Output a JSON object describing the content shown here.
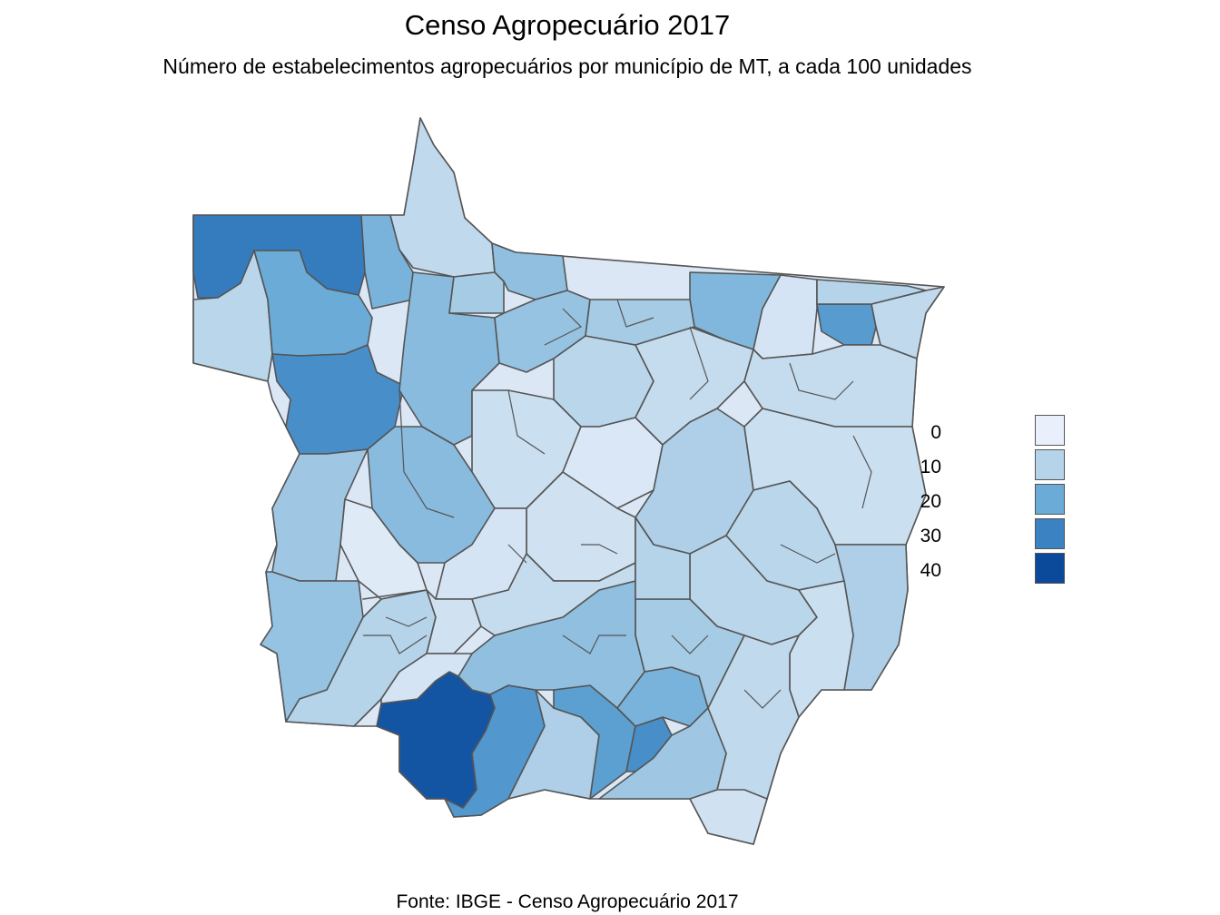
{
  "title": "Censo Agropecuário 2017",
  "subtitle": "Número de estabelecimentos agropecuários por município de MT, a cada 100 unidades",
  "caption": "Fonte: IBGE - Censo Agropecuário 2017",
  "legend": {
    "items": [
      {
        "label": "0",
        "value": 0,
        "color": "#eaf0fb"
      },
      {
        "label": "10",
        "value": 10,
        "color": "#b5d3e9"
      },
      {
        "label": "20",
        "value": 20,
        "color": "#6aabd7"
      },
      {
        "label": "30",
        "value": 30,
        "color": "#3a82c2"
      },
      {
        "label": "40",
        "value": 40,
        "color": "#0b4a9b"
      }
    ]
  },
  "map": {
    "state": "MT",
    "municipalities": [
      {
        "id": "nw-1",
        "value": 31
      },
      {
        "id": "nw-2",
        "value": 9
      },
      {
        "id": "nw-3",
        "value": 20
      },
      {
        "id": "nw-4",
        "value": 27
      },
      {
        "id": "nw-5",
        "value": 18
      },
      {
        "id": "n-1",
        "value": 8
      },
      {
        "id": "n-2",
        "value": 16
      },
      {
        "id": "n-3",
        "value": 12
      },
      {
        "id": "n-4",
        "value": 15
      },
      {
        "id": "n-5",
        "value": 14
      },
      {
        "id": "ne-1",
        "value": 17
      },
      {
        "id": "ne-2",
        "value": 4
      },
      {
        "id": "ne-3",
        "value": 24
      },
      {
        "id": "ne-4",
        "value": 8
      },
      {
        "id": "ne-5",
        "value": 10
      },
      {
        "id": "c-1",
        "value": 6
      },
      {
        "id": "c-2",
        "value": 9
      },
      {
        "id": "c-3",
        "value": 3
      },
      {
        "id": "c-4",
        "value": 7
      },
      {
        "id": "c-5",
        "value": 11
      },
      {
        "id": "c-6",
        "value": 5
      },
      {
        "id": "c-7",
        "value": 12
      },
      {
        "id": "e-1",
        "value": 7
      },
      {
        "id": "e-2",
        "value": 6
      },
      {
        "id": "e-3",
        "value": 9
      },
      {
        "id": "e-4",
        "value": 11
      },
      {
        "id": "w-1",
        "value": 13
      },
      {
        "id": "w-2",
        "value": 16
      },
      {
        "id": "w-3",
        "value": 2
      },
      {
        "id": "w-4",
        "value": 4
      },
      {
        "id": "sw-1",
        "value": 14
      },
      {
        "id": "sw-2",
        "value": 10
      },
      {
        "id": "sw-3",
        "value": 5
      },
      {
        "id": "s-1",
        "value": 38
      },
      {
        "id": "s-2",
        "value": 25
      },
      {
        "id": "s-3",
        "value": 11
      },
      {
        "id": "s-4",
        "value": 23
      },
      {
        "id": "s-5",
        "value": 27
      },
      {
        "id": "s-6",
        "value": 18
      },
      {
        "id": "se-1",
        "value": 9
      },
      {
        "id": "se-2",
        "value": 6
      },
      {
        "id": "se-3",
        "value": 8
      },
      {
        "id": "se-4",
        "value": 5
      },
      {
        "id": "se-5",
        "value": 12
      },
      {
        "id": "cs-1",
        "value": 15
      },
      {
        "id": "cs-2",
        "value": 7
      },
      {
        "id": "cs-3",
        "value": 10
      },
      {
        "id": "cs-4",
        "value": 4
      },
      {
        "id": "cs-5",
        "value": 13
      }
    ]
  }
}
